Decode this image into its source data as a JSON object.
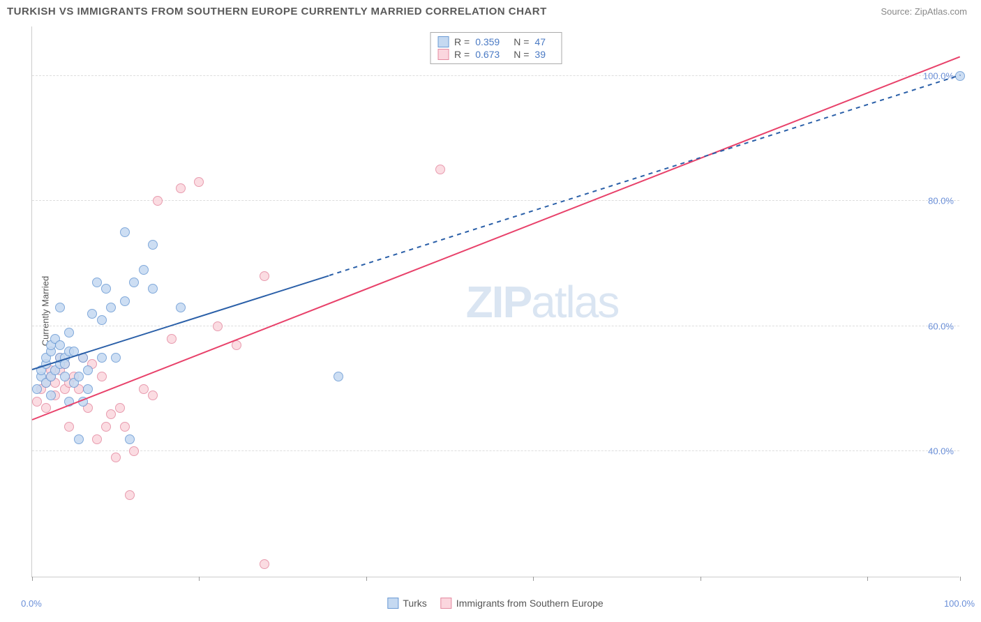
{
  "title": "TURKISH VS IMMIGRANTS FROM SOUTHERN EUROPE CURRENTLY MARRIED CORRELATION CHART",
  "source": "Source: ZipAtlas.com",
  "watermark_bold": "ZIP",
  "watermark_thin": "atlas",
  "chart": {
    "type": "scatter",
    "ylabel": "Currently Married",
    "xlim": [
      0,
      100
    ],
    "ylim": [
      20,
      108
    ],
    "x_ticks": [
      0,
      18,
      36,
      54,
      72,
      90,
      100
    ],
    "x_tick_labels": {
      "0": "0.0%",
      "100": "100.0%"
    },
    "y_gridlines": [
      40,
      60,
      80,
      100
    ],
    "y_tick_labels": {
      "40": "40.0%",
      "60": "60.0%",
      "80": "80.0%",
      "100": "100.0%"
    },
    "background_color": "#ffffff",
    "grid_color": "#dddddd",
    "label_color": "#6a8fd8",
    "axis_title_color": "#555555",
    "point_radius": 7,
    "point_stroke_width": 1.2,
    "series": {
      "turks": {
        "label": "Turks",
        "fill": "#c5d9f1",
        "stroke": "#6a9ad4",
        "R": "0.359",
        "N": "47",
        "trend_color": "#2a5fa8",
        "trend_solid": {
          "x1": 0,
          "y1": 53,
          "x2": 32,
          "y2": 68
        },
        "trend_dashed": {
          "x1": 32,
          "y1": 68,
          "x2": 100,
          "y2": 100
        },
        "points": [
          [
            0.5,
            50
          ],
          [
            1,
            52
          ],
          [
            1,
            53
          ],
          [
            1.5,
            51
          ],
          [
            1.5,
            54
          ],
          [
            1.5,
            55
          ],
          [
            2,
            49
          ],
          [
            2,
            52
          ],
          [
            2,
            56
          ],
          [
            2,
            57
          ],
          [
            2.5,
            53
          ],
          [
            2.5,
            58
          ],
          [
            3,
            54
          ],
          [
            3,
            55
          ],
          [
            3,
            57
          ],
          [
            3,
            63
          ],
          [
            3.5,
            52
          ],
          [
            3.5,
            55
          ],
          [
            3.5,
            54
          ],
          [
            4,
            48
          ],
          [
            4,
            56
          ],
          [
            4,
            59
          ],
          [
            4.5,
            51
          ],
          [
            4.5,
            56
          ],
          [
            5,
            42
          ],
          [
            5,
            52
          ],
          [
            5.5,
            48
          ],
          [
            5.5,
            55
          ],
          [
            6,
            50
          ],
          [
            6,
            53
          ],
          [
            6.5,
            62
          ],
          [
            7,
            67
          ],
          [
            7.5,
            55
          ],
          [
            7.5,
            61
          ],
          [
            8,
            66
          ],
          [
            8.5,
            63
          ],
          [
            9,
            55
          ],
          [
            10,
            64
          ],
          [
            10,
            75
          ],
          [
            10.5,
            42
          ],
          [
            11,
            67
          ],
          [
            12,
            69
          ],
          [
            13,
            66
          ],
          [
            13,
            73
          ],
          [
            16,
            63
          ],
          [
            33,
            52
          ],
          [
            100,
            100
          ]
        ]
      },
      "immigrants": {
        "label": "Immigrants from Southern Europe",
        "fill": "#fbd6de",
        "stroke": "#e48aa0",
        "R": "0.673",
        "N": "39",
        "trend_color": "#e8416a",
        "trend_solid": {
          "x1": 0,
          "y1": 45,
          "x2": 100,
          "y2": 103
        },
        "points": [
          [
            0.5,
            48
          ],
          [
            1,
            50
          ],
          [
            1.5,
            47
          ],
          [
            1.5,
            51
          ],
          [
            2,
            52
          ],
          [
            2,
            53
          ],
          [
            2.5,
            49
          ],
          [
            2.5,
            51
          ],
          [
            3,
            53
          ],
          [
            3,
            55
          ],
          [
            3.5,
            50
          ],
          [
            3.5,
            54
          ],
          [
            4,
            44
          ],
          [
            4,
            51
          ],
          [
            4.5,
            52
          ],
          [
            5,
            50
          ],
          [
            5.5,
            55
          ],
          [
            6,
            47
          ],
          [
            6.5,
            54
          ],
          [
            7,
            42
          ],
          [
            7.5,
            52
          ],
          [
            8,
            44
          ],
          [
            8.5,
            46
          ],
          [
            9,
            39
          ],
          [
            9.5,
            47
          ],
          [
            10,
            44
          ],
          [
            10.5,
            33
          ],
          [
            11,
            40
          ],
          [
            12,
            50
          ],
          [
            13,
            49
          ],
          [
            13.5,
            80
          ],
          [
            15,
            58
          ],
          [
            16,
            82
          ],
          [
            18,
            83
          ],
          [
            20,
            60
          ],
          [
            22,
            57
          ],
          [
            25,
            68
          ],
          [
            25,
            22
          ],
          [
            44,
            85
          ]
        ]
      }
    }
  },
  "stats_labels": {
    "R": "R =",
    "N": "N ="
  }
}
